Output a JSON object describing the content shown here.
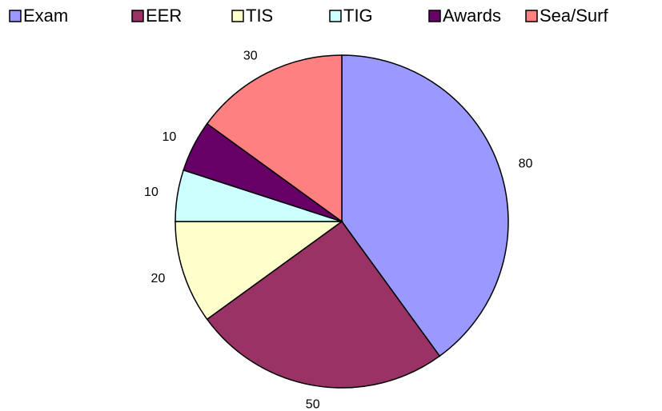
{
  "chart_data": {
    "type": "pie",
    "categories": [
      "Exam",
      "EER",
      "TIS",
      "TIG",
      "Awards",
      "Sea/Surf"
    ],
    "values": [
      80,
      50,
      20,
      10,
      10,
      30
    ],
    "colors": [
      "#9999ff",
      "#993366",
      "#ffffcc",
      "#ccffff",
      "#660066",
      "#ff8080"
    ],
    "legend": "top"
  }
}
